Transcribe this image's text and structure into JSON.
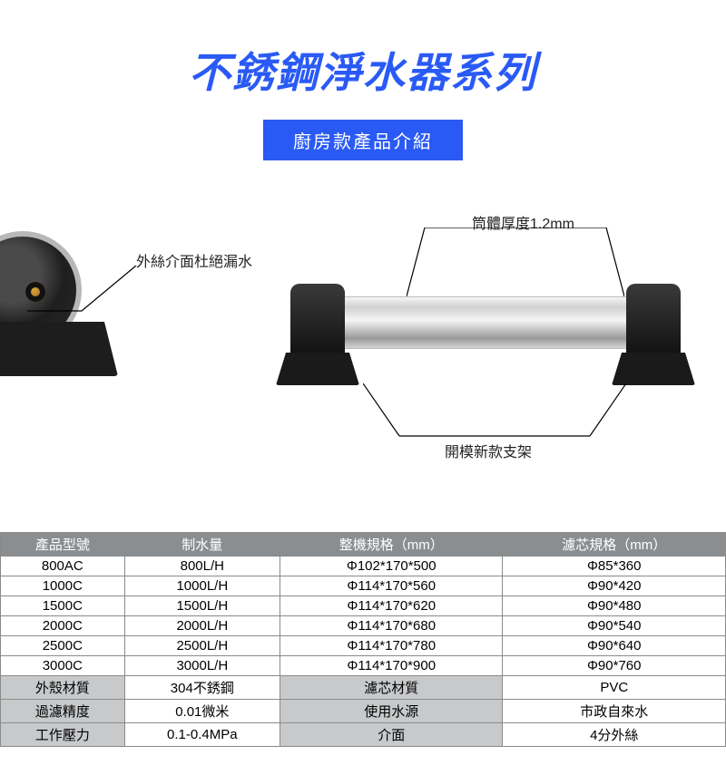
{
  "palette": {
    "accent": "#2a5af5",
    "header_row_bg": "#8b8e91",
    "header_row_fg": "#ffffff",
    "meta_label_bg": "#c7c9cb",
    "border": "#8a8a8a"
  },
  "title": "不銹鋼淨水器系列",
  "subtitle": "廚房款產品介紹",
  "callouts": {
    "thread_seal": "外絲介面杜絕漏水",
    "wall_thickness": "筒體厚度1.2mm",
    "new_bracket": "開模新款支架"
  },
  "specs_table": {
    "columns": [
      "產品型號",
      "制水量",
      "整機規格（mm）",
      "濾芯規格（mm）"
    ],
    "rows": [
      [
        "800AC",
        "800L/H",
        "Φ102*170*500",
        "Φ85*360"
      ],
      [
        "1000C",
        "1000L/H",
        "Φ114*170*560",
        "Φ90*420"
      ],
      [
        "1500C",
        "1500L/H",
        "Φ114*170*620",
        "Φ90*480"
      ],
      [
        "2000C",
        "2000L/H",
        "Φ114*170*680",
        "Φ90*540"
      ],
      [
        "2500C",
        "2500L/H",
        "Φ114*170*780",
        "Φ90*640"
      ],
      [
        "3000C",
        "3000L/H",
        "Φ114*170*900",
        "Φ90*760"
      ]
    ],
    "meta_rows": [
      [
        "外殼材質",
        "304不銹鋼",
        "濾芯材質",
        "PVC"
      ],
      [
        "過濾精度",
        "0.01微米",
        "使用水源",
        "市政自來水"
      ],
      [
        "工作壓力",
        "0.1-0.4MPa",
        "介面",
        "4分外絲"
      ]
    ]
  }
}
